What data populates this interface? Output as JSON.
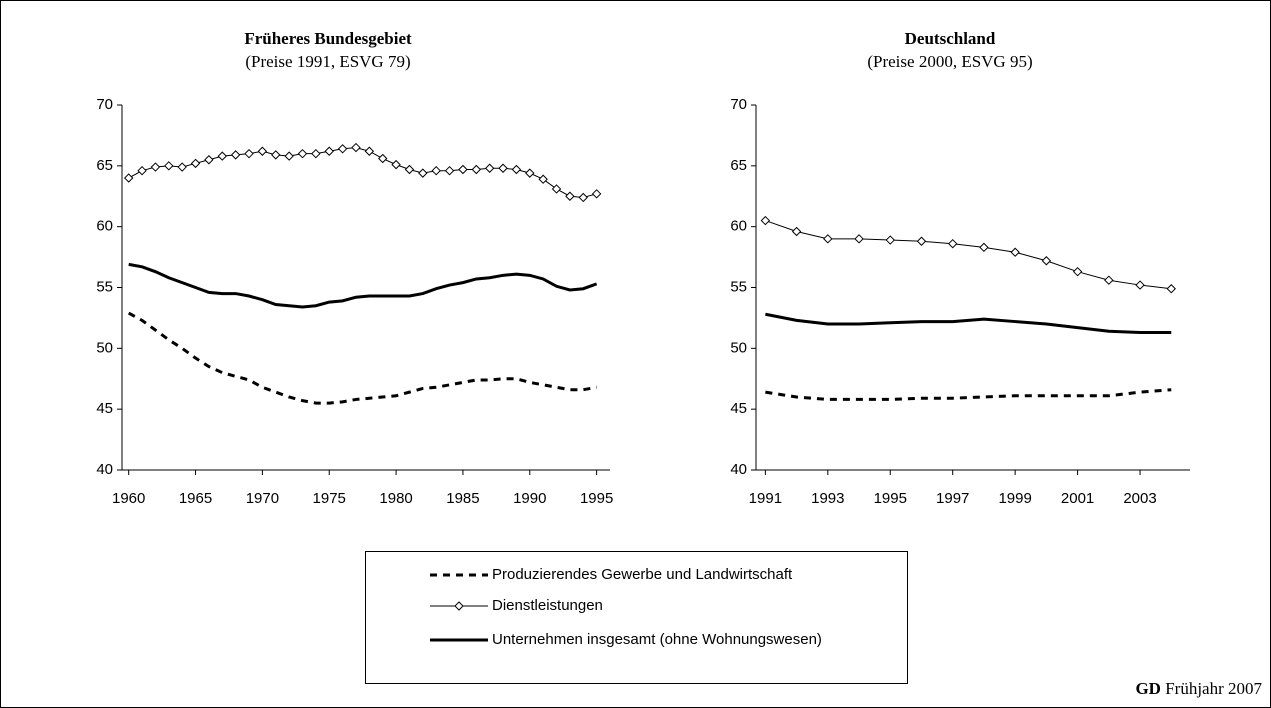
{
  "chart_data": [
    {
      "type": "line",
      "title": "Früheres Bundesgebiet",
      "subtitle": "(Preise 1991, ESVG 79)",
      "x": [
        1960,
        1961,
        1962,
        1963,
        1964,
        1965,
        1966,
        1967,
        1968,
        1969,
        1970,
        1971,
        1972,
        1973,
        1974,
        1975,
        1976,
        1977,
        1978,
        1979,
        1980,
        1981,
        1982,
        1983,
        1984,
        1985,
        1986,
        1987,
        1988,
        1989,
        1990,
        1991,
        1992,
        1993,
        1994,
        1995
      ],
      "xlim": [
        1959.5,
        1996
      ],
      "xticks": [
        1960,
        1965,
        1970,
        1975,
        1980,
        1985,
        1990,
        1995
      ],
      "ylim": [
        40,
        70
      ],
      "yticks": [
        40,
        45,
        50,
        55,
        60,
        65,
        70
      ],
      "series": [
        {
          "name": "Produzierendes Gewerbe und Landwirtschaft",
          "color": "#000000",
          "line_style": "dashed",
          "line_width": 3,
          "values": [
            52.9,
            52.3,
            51.5,
            50.7,
            50.0,
            49.2,
            48.5,
            48.0,
            47.7,
            47.4,
            46.8,
            46.4,
            46.0,
            45.7,
            45.5,
            45.5,
            45.6,
            45.8,
            45.9,
            46.0,
            46.1,
            46.4,
            46.7,
            46.8,
            47.0,
            47.2,
            47.4,
            47.4,
            47.5,
            47.5,
            47.2,
            47.0,
            46.8,
            46.6,
            46.6,
            46.8
          ]
        },
        {
          "name": "Dienstleistungen",
          "color": "#000000",
          "line_style": "solid",
          "line_width": 1,
          "marker": "diamond",
          "values": [
            64.0,
            64.6,
            64.9,
            65.0,
            64.9,
            65.2,
            65.5,
            65.8,
            65.9,
            66.0,
            66.2,
            65.9,
            65.8,
            66.0,
            66.0,
            66.2,
            66.4,
            66.5,
            66.2,
            65.6,
            65.1,
            64.7,
            64.4,
            64.6,
            64.6,
            64.7,
            64.7,
            64.8,
            64.8,
            64.7,
            64.4,
            63.9,
            63.1,
            62.5,
            62.4,
            62.7
          ]
        },
        {
          "name": "Unternehmen insgesamt (ohne Wohnungswesen)",
          "color": "#000000",
          "line_style": "solid",
          "line_width": 3,
          "values": [
            56.9,
            56.7,
            56.3,
            55.8,
            55.4,
            55.0,
            54.6,
            54.5,
            54.5,
            54.3,
            54.0,
            53.6,
            53.5,
            53.4,
            53.5,
            53.8,
            53.9,
            54.2,
            54.3,
            54.3,
            54.3,
            54.3,
            54.5,
            54.9,
            55.2,
            55.4,
            55.7,
            55.8,
            56.0,
            56.1,
            56.0,
            55.7,
            55.1,
            54.8,
            54.9,
            55.3
          ]
        }
      ]
    },
    {
      "type": "line",
      "title": "Deutschland",
      "subtitle": "(Preise 2000, ESVG 95)",
      "x": [
        1991,
        1992,
        1993,
        1994,
        1995,
        1996,
        1997,
        1998,
        1999,
        2000,
        2001,
        2002,
        2003,
        2004
      ],
      "xlim": [
        1990.7,
        2004.6
      ],
      "xticks": [
        1991,
        1993,
        1995,
        1997,
        1999,
        2001,
        2003
      ],
      "ylim": [
        40,
        70
      ],
      "yticks": [
        40,
        45,
        50,
        55,
        60,
        65,
        70
      ],
      "series": [
        {
          "color": "#000000",
          "line_style": "dashed",
          "line_width": 3,
          "values": [
            46.4,
            46.0,
            45.8,
            45.8,
            45.8,
            45.9,
            45.9,
            46.0,
            46.1,
            46.1,
            46.1,
            46.1,
            46.4,
            46.6
          ]
        },
        {
          "color": "#000000",
          "line_style": "solid",
          "line_width": 1,
          "marker": "diamond",
          "values": [
            60.5,
            59.6,
            59.0,
            59.0,
            58.9,
            58.8,
            58.6,
            58.3,
            57.9,
            57.2,
            56.3,
            55.6,
            55.2,
            54.9
          ]
        },
        {
          "color": "#000000",
          "line_style": "solid",
          "line_width": 3,
          "values": [
            52.8,
            52.3,
            52.0,
            52.0,
            52.1,
            52.2,
            52.2,
            52.4,
            52.2,
            52.0,
            51.7,
            51.4,
            51.3,
            51.3
          ]
        }
      ]
    }
  ],
  "source": {
    "bold": "GD",
    "text": "Frühjahr 2007"
  }
}
